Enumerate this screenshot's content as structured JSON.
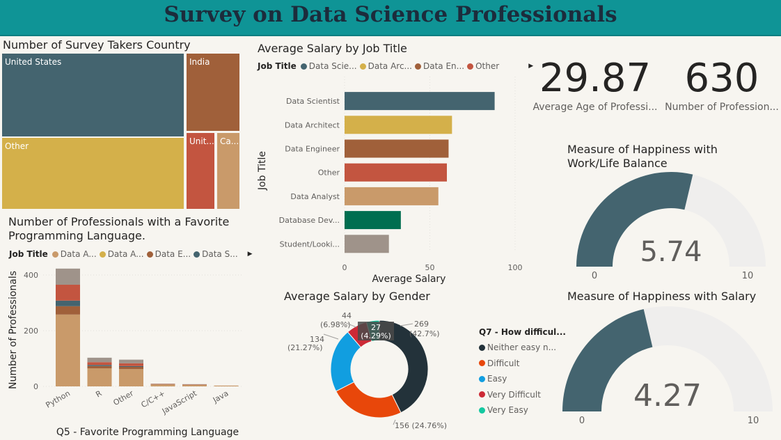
{
  "banner": {
    "title": "Survey on Data Science Professionals"
  },
  "colors": {
    "teal_dark": "#44646f",
    "gold": "#d4b04a",
    "brown": "#a0603a",
    "red": "#c35540",
    "tan": "#c99a6a",
    "green": "#006e50",
    "gray": "#9f938a",
    "banner": "#0f9496"
  },
  "treemap": {
    "title": "Number of Survey Takers Country",
    "cells": [
      {
        "label": "United States",
        "color": "#44646f"
      },
      {
        "label": "Other",
        "color": "#d4b04a"
      },
      {
        "label": "India",
        "color": "#a0603a"
      },
      {
        "label": "Unit...",
        "color": "#c35540"
      },
      {
        "label": "Ca...",
        "color": "#c99a6a"
      }
    ]
  },
  "kpis": [
    {
      "value": "29.87",
      "label": "Average Age of Professi..."
    },
    {
      "value": "630",
      "label": "Number of Profession..."
    }
  ],
  "chart_data": [
    {
      "type": "bar",
      "orientation": "horizontal",
      "title": "Average Salary by Job Title",
      "xlabel": "Average Salary",
      "ylabel": "Job Title",
      "legend_title": "Job Title",
      "legend": [
        "Data Scie...",
        "Data Arc...",
        "Data En...",
        "Other"
      ],
      "categories": [
        "Data Scientist",
        "Data Architect",
        "Data Engineer",
        "Other",
        "Data Analyst",
        "Database Dev...",
        "Student/Looki..."
      ],
      "values": [
        88,
        63,
        61,
        60,
        55,
        33,
        26
      ],
      "colors": [
        "#44646f",
        "#d4b04a",
        "#a0603a",
        "#c35540",
        "#c99a6a",
        "#006e50",
        "#9f938a"
      ],
      "xlim": [
        0,
        100
      ],
      "xticks": [
        0,
        50,
        100
      ]
    },
    {
      "type": "bar",
      "stacked": true,
      "title": "Number of Professionals with a Favorite Programming Language.",
      "xlabel": "Q5 - Favorite Programming Language",
      "ylabel": "Number of Professionals",
      "legend_title": "Job Title",
      "legend": [
        "Data A...",
        "Data A...",
        "Data E...",
        "Data S..."
      ],
      "legend_colors": [
        "#c99a6a",
        "#d4b04a",
        "#a0603a",
        "#44646f"
      ],
      "categories": [
        "Python",
        "R",
        "Other",
        "C/C++",
        "JavaScript",
        "Java"
      ],
      "ylim": [
        0,
        450
      ],
      "yticks": [
        0,
        200,
        400
      ],
      "series": [
        {
          "color": "#c99a6a",
          "values": [
            258,
            65,
            62,
            7,
            5,
            3
          ]
        },
        {
          "color": "#a0603a",
          "values": [
            30,
            8,
            8,
            1,
            1,
            0
          ]
        },
        {
          "color": "#44646f",
          "values": [
            20,
            4,
            3,
            0,
            0,
            0
          ]
        },
        {
          "color": "#c35540",
          "values": [
            57,
            10,
            10,
            1,
            1,
            0
          ]
        },
        {
          "color": "#9f938a",
          "values": [
            58,
            16,
            13,
            1,
            1,
            0
          ]
        }
      ]
    },
    {
      "type": "pie",
      "donut": true,
      "title": "Average Salary by Gender",
      "legend_title": "Q7 - How difficul...",
      "slices": [
        {
          "label": "Neither easy n...",
          "value": 269,
          "pct": "42.7%",
          "color": "#23323a"
        },
        {
          "label": "Difficult",
          "value": 156,
          "pct": "24.76%",
          "color": "#e8470a"
        },
        {
          "label": "Easy",
          "value": 134,
          "pct": "21.27%",
          "color": "#119ee0"
        },
        {
          "label": "Very Difficult",
          "value": 44,
          "pct": "6.98%",
          "color": "#cc2a36"
        },
        {
          "label": "Very Easy",
          "value": 27,
          "pct": "4.29%",
          "color": "#14c8a0"
        }
      ],
      "data_labels": [
        {
          "text": "269",
          "sub": "(42.7%)"
        },
        {
          "text": "156 (24.76%)"
        },
        {
          "text": "134",
          "sub": "(21.27%)"
        },
        {
          "text": "44",
          "sub": "(6.98%)"
        },
        {
          "text": "27",
          "sub": "(4.29%)"
        }
      ]
    },
    {
      "type": "gauge",
      "title": "Measure of Happiness with Work/Life Balance",
      "title_lines": [
        "Measure of Happiness with",
        "Work/Life Balance"
      ],
      "value": 5.74,
      "value_label": "5.74",
      "min": 0,
      "max": 10,
      "min_label": "0",
      "max_label": "10",
      "color": "#44646f"
    },
    {
      "type": "gauge",
      "title": "Measure of Happiness with Salary",
      "title_lines": [
        "Measure of Happiness with Salary"
      ],
      "value": 4.27,
      "value_label": "4.27",
      "min": 0,
      "max": 10,
      "min_label": "0",
      "max_label": "10",
      "color": "#44646f"
    }
  ]
}
